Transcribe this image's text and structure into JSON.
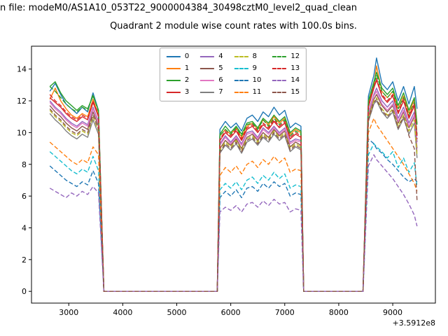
{
  "figure": {
    "title_line": "n file: modeM0/AS1A10_053T22_9000004384_30498cztM0_level2_quad_clean"
  },
  "chart_data": {
    "type": "line",
    "title": "Quadrant 2 module wise count rates with 100.0s bins.",
    "xlabel": "",
    "ylabel": "",
    "x_offset_label": "+3.5912e8",
    "grid": false,
    "legend_position": "upper center",
    "legend_columns": 4,
    "xlim": [
      2310,
      9790
    ],
    "ylim": [
      -0.74,
      15.44
    ],
    "xticks": [
      3000,
      4000,
      5000,
      6000,
      7000,
      8000,
      9000
    ],
    "yticks": [
      0,
      2,
      4,
      6,
      8,
      10,
      12,
      14
    ],
    "x": [
      2650,
      2750,
      2850,
      2950,
      3050,
      3150,
      3250,
      3350,
      3450,
      3550,
      3650,
      3700,
      4500,
      5600,
      5750,
      5800,
      5900,
      6000,
      6100,
      6200,
      6300,
      6400,
      6500,
      6600,
      6700,
      6800,
      6900,
      7000,
      7100,
      7200,
      7300,
      7350,
      8400,
      8450,
      8550,
      8650,
      8700,
      8800,
      8900,
      9000,
      9100,
      9200,
      9300,
      9400,
      9450
    ],
    "series": [
      {
        "name": "0",
        "color": "#1f77b4",
        "dash": "solid",
        "values": [
          12.6,
          13.1,
          12.4,
          11.8,
          11.5,
          11.2,
          11.6,
          11.3,
          12.5,
          11.4,
          0,
          0,
          0,
          0,
          0,
          10.2,
          10.7,
          10.3,
          10.6,
          10.1,
          10.9,
          11.1,
          10.7,
          11.3,
          11.0,
          11.6,
          11.1,
          11.4,
          10.3,
          10.6,
          10.4,
          0,
          0,
          0,
          12.3,
          13.6,
          14.7,
          13.1,
          12.7,
          13.2,
          12.0,
          12.9,
          11.8,
          12.9,
          11.5
        ]
      },
      {
        "name": "1",
        "color": "#ff7f0e",
        "dash": "solid",
        "values": [
          12.1,
          12.8,
          12.0,
          11.5,
          11.1,
          10.9,
          11.2,
          11.0,
          12.1,
          11.1,
          0,
          0,
          0,
          0,
          0,
          9.8,
          10.2,
          9.9,
          10.3,
          9.7,
          10.4,
          10.6,
          10.2,
          10.8,
          10.5,
          11.0,
          10.6,
          10.9,
          9.9,
          10.2,
          10.0,
          0,
          0,
          0,
          11.8,
          13.0,
          14.2,
          12.6,
          12.2,
          12.6,
          11.5,
          12.3,
          11.2,
          12.1,
          10.6
        ]
      },
      {
        "name": "2",
        "color": "#2ca02c",
        "dash": "solid",
        "values": [
          12.9,
          13.2,
          12.5,
          12.0,
          11.7,
          11.4,
          11.7,
          11.5,
          12.3,
          11.4,
          0,
          0,
          0,
          0,
          0,
          9.9,
          10.4,
          10.0,
          10.4,
          9.9,
          10.6,
          10.7,
          10.3,
          10.9,
          10.6,
          11.1,
          10.7,
          11.0,
          10.0,
          10.3,
          10.1,
          0,
          0,
          0,
          12.0,
          13.2,
          13.8,
          12.8,
          12.4,
          12.8,
          11.7,
          12.5,
          11.4,
          12.2,
          10.5
        ]
      },
      {
        "name": "3",
        "color": "#d62728",
        "dash": "solid",
        "values": [
          12.2,
          11.9,
          11.6,
          11.2,
          10.9,
          10.7,
          11.0,
          10.8,
          11.9,
          11.0,
          0,
          0,
          0,
          0,
          0,
          9.5,
          10.0,
          9.7,
          10.1,
          9.5,
          10.2,
          10.4,
          10.0,
          10.5,
          10.2,
          10.7,
          10.3,
          10.6,
          9.6,
          9.9,
          9.7,
          0,
          0,
          0,
          11.6,
          12.8,
          13.3,
          12.3,
          11.9,
          12.3,
          11.2,
          12.0,
          10.9,
          11.7,
          9.8
        ]
      },
      {
        "name": "4",
        "color": "#9467bd",
        "dash": "solid",
        "values": [
          12.0,
          11.6,
          11.3,
          10.9,
          10.6,
          10.4,
          10.7,
          10.5,
          11.6,
          10.7,
          0,
          0,
          0,
          0,
          0,
          9.3,
          9.8,
          9.4,
          9.8,
          9.3,
          10.0,
          10.1,
          9.7,
          10.3,
          10.0,
          10.4,
          10.0,
          10.3,
          9.4,
          9.6,
          9.5,
          0,
          0,
          0,
          11.3,
          12.4,
          12.8,
          12.0,
          11.6,
          12.0,
          10.9,
          11.6,
          10.6,
          11.3,
          9.4
        ]
      },
      {
        "name": "5",
        "color": "#8c564b",
        "dash": "solid",
        "values": [
          11.7,
          11.3,
          11.0,
          10.6,
          10.3,
          10.1,
          10.4,
          10.2,
          11.3,
          10.4,
          0,
          0,
          0,
          0,
          0,
          9.0,
          9.5,
          9.2,
          9.6,
          9.0,
          9.7,
          9.9,
          9.5,
          10.0,
          9.7,
          10.2,
          9.8,
          10.1,
          9.1,
          9.4,
          9.2,
          0,
          0,
          0,
          11.0,
          12.1,
          12.4,
          11.7,
          11.3,
          11.7,
          10.6,
          11.3,
          10.3,
          11.0,
          9.0
        ]
      },
      {
        "name": "6",
        "color": "#e377c2",
        "dash": "solid",
        "values": [
          11.9,
          11.5,
          11.2,
          10.8,
          10.5,
          10.3,
          10.6,
          10.4,
          11.5,
          10.6,
          0,
          0,
          0,
          0,
          0,
          9.2,
          9.7,
          9.3,
          9.7,
          9.2,
          9.9,
          10.0,
          9.6,
          10.2,
          9.9,
          10.3,
          9.9,
          10.2,
          9.3,
          9.5,
          9.4,
          0,
          0,
          0,
          11.2,
          12.3,
          12.6,
          11.8,
          11.4,
          11.8,
          10.7,
          11.4,
          10.4,
          11.1,
          8.8
        ]
      },
      {
        "name": "7",
        "color": "#7f7f7f",
        "dash": "solid",
        "values": [
          11.2,
          10.8,
          10.5,
          10.1,
          9.8,
          9.6,
          9.9,
          9.7,
          10.8,
          9.9,
          0,
          0,
          0,
          0,
          0,
          8.7,
          9.2,
          8.9,
          9.3,
          8.7,
          9.4,
          9.6,
          9.2,
          9.7,
          9.4,
          9.9,
          9.5,
          9.8,
          8.8,
          9.1,
          8.9,
          0,
          0,
          0,
          10.7,
          11.8,
          12.0,
          11.3,
          10.9,
          11.3,
          10.2,
          10.9,
          9.9,
          10.6,
          8.4
        ]
      },
      {
        "name": "8",
        "color": "#bcbd22",
        "dash": "dashed",
        "values": [
          11.4,
          11.0,
          10.7,
          10.3,
          10.0,
          9.8,
          10.1,
          9.9,
          11.0,
          10.1,
          0,
          0,
          0,
          0,
          0,
          8.9,
          9.4,
          9.1,
          9.5,
          8.9,
          9.6,
          9.8,
          9.4,
          9.9,
          9.6,
          10.1,
          9.7,
          10.0,
          9.0,
          9.3,
          9.1,
          0,
          0,
          0,
          10.9,
          12.0,
          12.2,
          11.5,
          11.1,
          11.5,
          10.4,
          11.1,
          10.1,
          10.8,
          8.6
        ]
      },
      {
        "name": "9",
        "color": "#17becf",
        "dash": "dashed",
        "values": [
          8.8,
          8.5,
          8.2,
          7.9,
          7.6,
          7.4,
          7.7,
          7.5,
          8.5,
          7.6,
          0,
          0,
          0,
          0,
          0,
          6.4,
          6.8,
          6.5,
          6.9,
          6.4,
          7.0,
          7.2,
          6.8,
          7.3,
          7.0,
          7.5,
          7.1,
          7.4,
          6.5,
          6.7,
          6.6,
          0,
          0,
          0,
          8.6,
          9.3,
          9.1,
          8.8,
          8.4,
          8.8,
          7.8,
          8.4,
          7.5,
          8.1,
          6.6
        ]
      },
      {
        "name": "10",
        "color": "#1f77b4",
        "dash": "dashed",
        "values": [
          7.9,
          7.6,
          7.3,
          7.0,
          6.8,
          6.6,
          6.9,
          6.7,
          7.6,
          6.8,
          0,
          0,
          0,
          0,
          0,
          5.9,
          6.3,
          6.0,
          6.4,
          5.9,
          6.5,
          6.6,
          6.3,
          6.8,
          6.5,
          6.9,
          6.6,
          6.8,
          6.0,
          6.2,
          6.1,
          0,
          0,
          0,
          9.6,
          9.3,
          9.0,
          8.7,
          8.3,
          8.0,
          7.6,
          7.2,
          6.9,
          7.1,
          6.9
        ]
      },
      {
        "name": "11",
        "color": "#ff7f0e",
        "dash": "dashed",
        "values": [
          9.4,
          9.1,
          8.8,
          8.5,
          8.2,
          8.0,
          8.3,
          8.1,
          9.1,
          8.6,
          0,
          0,
          0,
          0,
          0,
          7.3,
          7.8,
          7.5,
          7.9,
          7.4,
          8.0,
          8.2,
          7.8,
          8.3,
          8.0,
          8.5,
          8.1,
          8.4,
          7.5,
          7.7,
          7.6,
          0,
          0,
          0,
          10.0,
          10.9,
          10.5,
          10.0,
          9.5,
          9.0,
          8.5,
          8.0,
          7.4,
          6.8,
          6.3
        ]
      },
      {
        "name": "12",
        "color": "#2ca02c",
        "dash": "dashed",
        "values": [
          12.9,
          12.6,
          12.2,
          11.8,
          11.5,
          11.3,
          11.6,
          11.4,
          12.4,
          11.3,
          0,
          0,
          0,
          0,
          0,
          9.8,
          10.2,
          9.9,
          10.3,
          9.8,
          10.5,
          10.6,
          10.2,
          10.8,
          10.4,
          10.9,
          10.5,
          10.8,
          9.8,
          10.1,
          9.9,
          0,
          0,
          0,
          11.9,
          13.0,
          13.6,
          12.6,
          12.2,
          12.6,
          11.5,
          12.2,
          11.1,
          11.9,
          9.9
        ]
      },
      {
        "name": "13",
        "color": "#d62728",
        "dash": "dashed",
        "values": [
          12.4,
          12.0,
          11.7,
          11.3,
          11.0,
          10.8,
          11.1,
          10.9,
          12.0,
          11.1,
          0,
          0,
          0,
          0,
          0,
          9.6,
          10.1,
          9.8,
          10.2,
          9.6,
          10.3,
          10.5,
          10.1,
          10.6,
          10.3,
          10.8,
          10.4,
          10.7,
          9.7,
          10.0,
          9.8,
          0,
          0,
          0,
          11.7,
          12.9,
          13.4,
          12.4,
          12.0,
          12.4,
          11.3,
          12.1,
          11.0,
          11.8,
          9.6
        ]
      },
      {
        "name": "14",
        "color": "#9467bd",
        "dash": "dashed",
        "values": [
          6.5,
          6.3,
          6.1,
          5.9,
          6.2,
          6.0,
          6.3,
          6.1,
          6.6,
          6.2,
          0,
          0,
          0,
          0,
          0,
          5.0,
          5.3,
          5.1,
          5.4,
          5.0,
          5.5,
          5.6,
          5.3,
          5.7,
          5.4,
          5.8,
          5.5,
          5.6,
          5.0,
          5.2,
          5.1,
          0,
          0,
          0,
          7.9,
          8.6,
          8.3,
          7.9,
          7.5,
          7.1,
          6.6,
          6.1,
          5.5,
          4.8,
          4.1
        ]
      },
      {
        "name": "15",
        "color": "#8c564b",
        "dash": "dashed",
        "values": [
          11.5,
          11.1,
          10.8,
          10.4,
          10.1,
          9.9,
          10.2,
          10.0,
          11.1,
          10.2,
          0,
          0,
          0,
          0,
          0,
          8.8,
          9.3,
          9.0,
          9.4,
          8.8,
          9.5,
          9.7,
          9.3,
          9.8,
          9.5,
          10.0,
          9.6,
          9.9,
          8.9,
          9.2,
          9.0,
          0,
          0,
          0,
          10.8,
          11.9,
          12.1,
          11.4,
          11.0,
          11.4,
          10.3,
          11.0,
          9.8,
          9.0,
          5.7
        ]
      }
    ]
  }
}
